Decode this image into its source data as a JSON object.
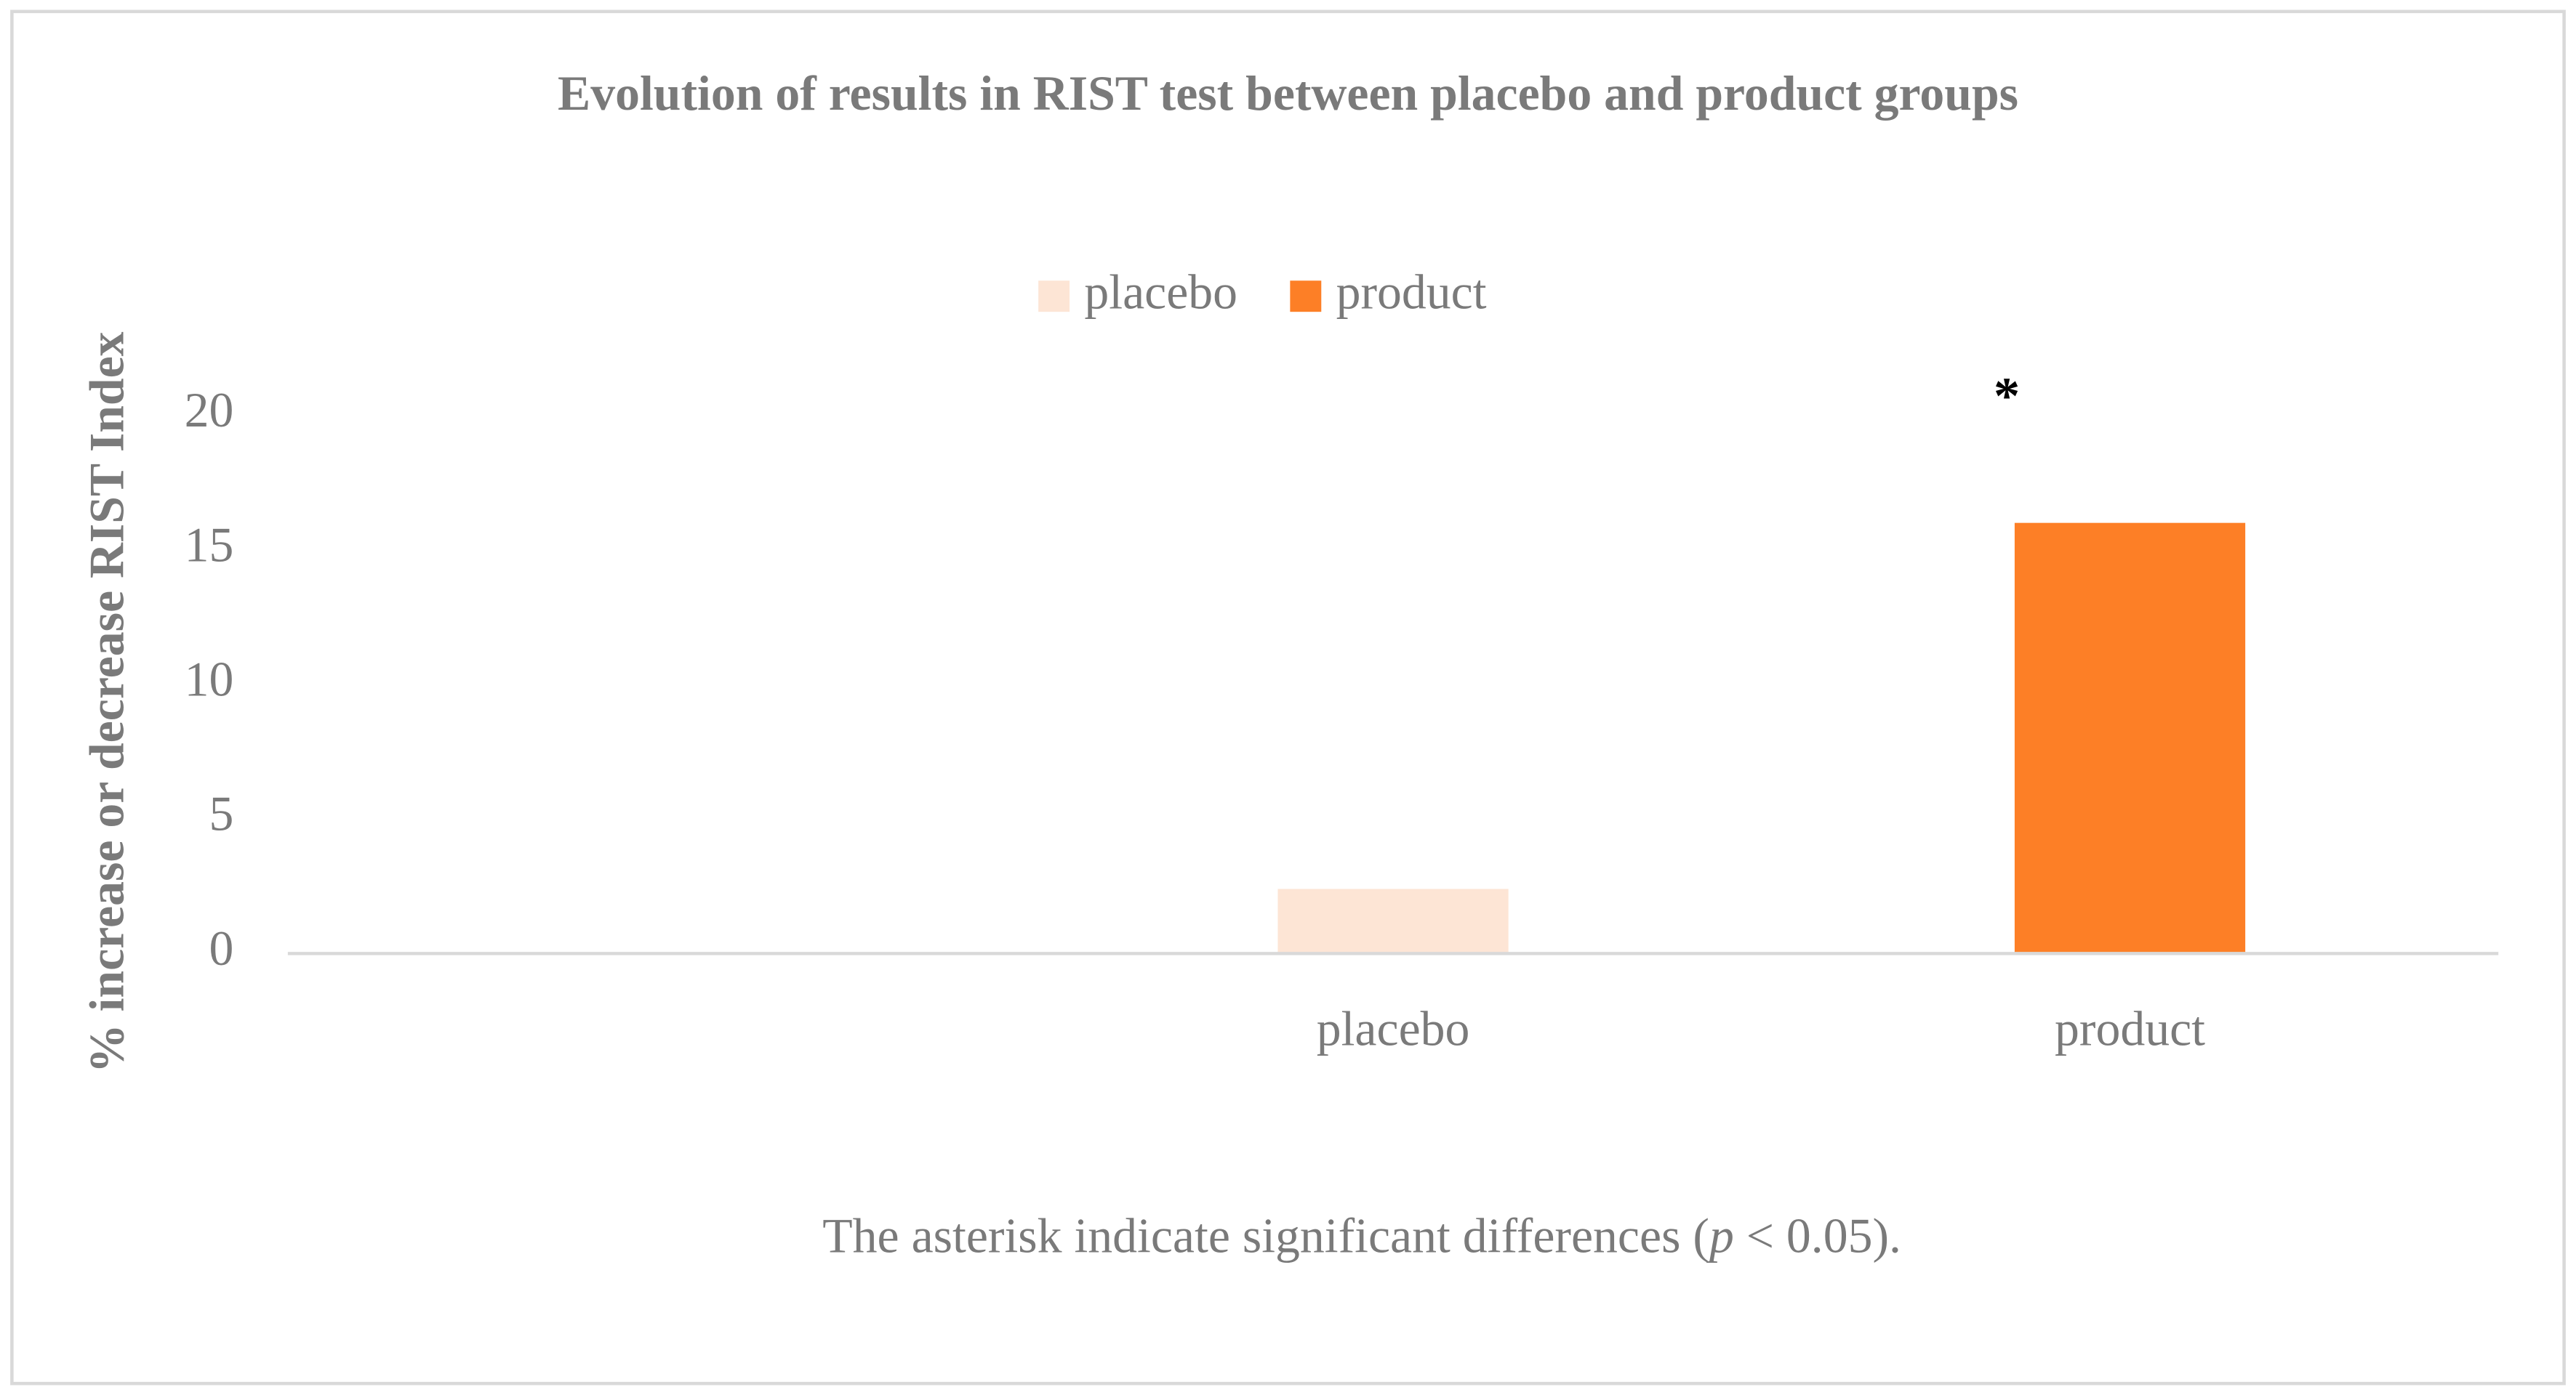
{
  "chart_data": {
    "type": "bar",
    "title": "Evolution of results in RIST test between placebo and product groups",
    "y_label": "% increase or decrease RIST Index",
    "categories": [
      null,
      "placebo",
      "product"
    ],
    "series": [
      {
        "name": "placebo",
        "color": "#fde5d5",
        "values": [
          null,
          2.4,
          null
        ]
      },
      {
        "name": "product",
        "color": "#fd7f26",
        "values": [
          null,
          null,
          16
        ]
      }
    ],
    "ylim": [
      0,
      20
    ],
    "yticks": [
      0,
      5,
      10,
      15,
      20
    ],
    "grid": false,
    "legend": "top",
    "annotations": [
      {
        "text": "*",
        "category": 2,
        "y": 21
      }
    ],
    "note": [
      "The asterisk indicate significant differences (",
      "p",
      " < 0.05)."
    ]
  }
}
